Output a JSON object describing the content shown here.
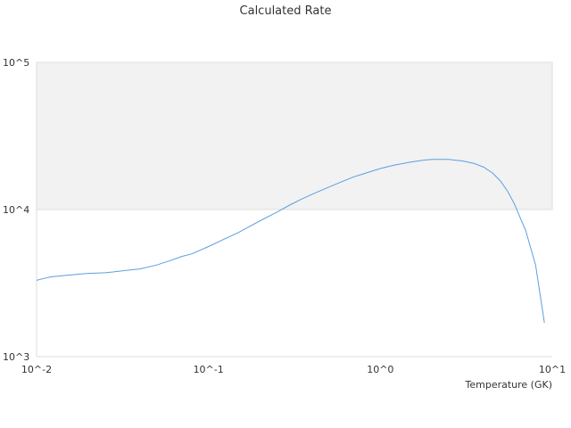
{
  "chart_data": {
    "type": "line",
    "title": "Calculated Rate",
    "xlabel": "Temperature (GK)",
    "ylabel": "",
    "x_scale": "log",
    "y_scale": "log",
    "xlim": [
      0.01,
      10
    ],
    "ylim": [
      1000,
      100000
    ],
    "x_ticks": [
      {
        "value": 0.01,
        "label": "10^-2"
      },
      {
        "value": 0.1,
        "label": "10^-1"
      },
      {
        "value": 1,
        "label": "10^0"
      },
      {
        "value": 10,
        "label": "10^1"
      }
    ],
    "y_ticks": [
      {
        "value": 1000,
        "label": "10^3"
      },
      {
        "value": 10000,
        "label": "10^4"
      },
      {
        "value": 100000,
        "label": "10^5"
      }
    ],
    "grid": false,
    "shaded_band": {
      "y_from": 10000,
      "y_to": 100000,
      "color": "#f2f2f2"
    },
    "colors": {
      "line": "#5a9fe0",
      "axis": "#dddddd",
      "text": "#333333"
    },
    "series": [
      {
        "x": [
          0.01,
          0.011,
          0.012,
          0.014,
          0.016,
          0.018,
          0.02,
          0.025,
          0.03,
          0.035,
          0.04,
          0.05,
          0.06,
          0.07,
          0.08,
          0.1,
          0.12,
          0.15,
          0.2,
          0.25,
          0.3,
          0.35,
          0.4,
          0.5,
          0.6,
          0.7,
          0.8,
          1.0,
          1.2,
          1.5,
          1.8,
          2.0,
          2.5,
          3.0,
          3.5,
          4.0,
          4.5,
          5.0,
          5.5,
          6.0,
          7.0,
          8.0,
          9.0
        ],
        "y": [
          3300,
          3400,
          3480,
          3550,
          3600,
          3650,
          3680,
          3720,
          3800,
          3880,
          3950,
          4200,
          4500,
          4800,
          5000,
          5600,
          6200,
          7000,
          8400,
          9600,
          10800,
          11800,
          12700,
          14200,
          15500,
          16700,
          17500,
          19000,
          20000,
          21000,
          21700,
          21900,
          21900,
          21400,
          20600,
          19400,
          17700,
          15600,
          13300,
          11000,
          7200,
          4200,
          1700
        ]
      }
    ]
  }
}
